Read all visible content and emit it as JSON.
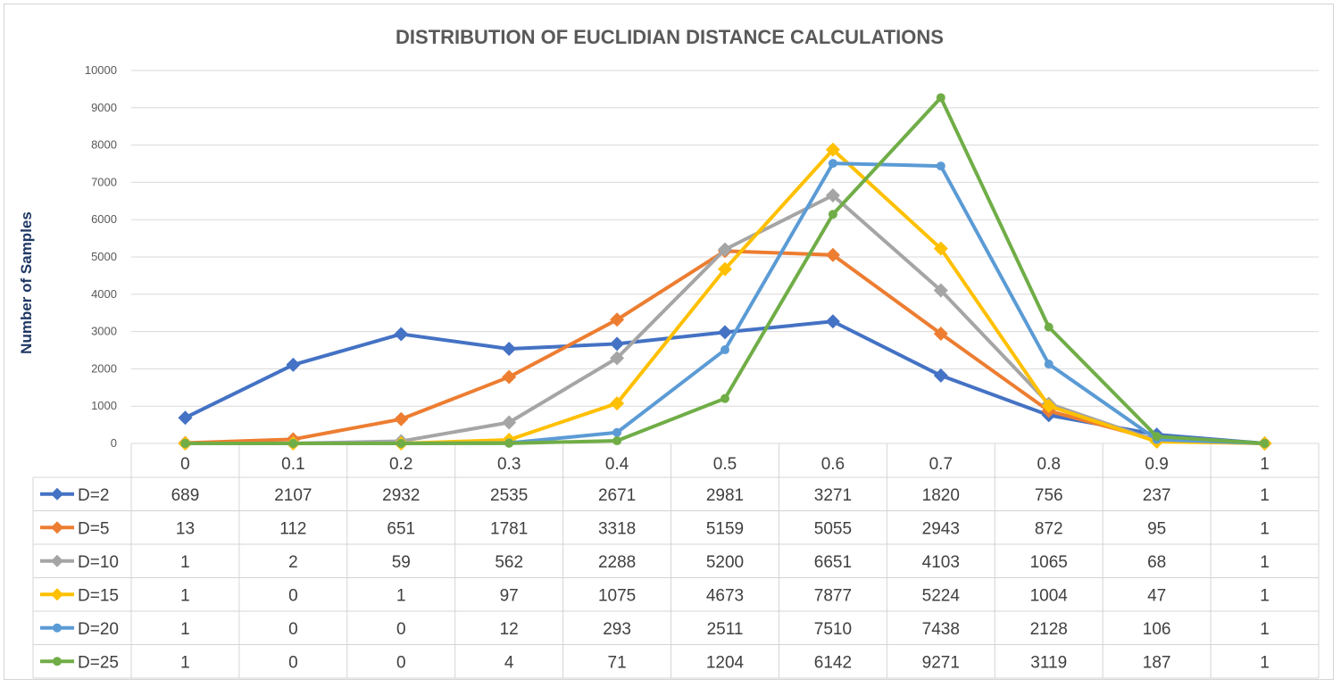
{
  "chart_data": {
    "type": "line",
    "title": "DISTRIBUTION OF EUCLIDIAN DISTANCE CALCULATIONS",
    "xlabel": "",
    "ylabel": "Number of Samples",
    "ylim": [
      0,
      10000
    ],
    "yticks": [
      0,
      1000,
      2000,
      3000,
      4000,
      5000,
      6000,
      7000,
      8000,
      9000,
      10000
    ],
    "categories": [
      "0",
      "0.1",
      "0.2",
      "0.3",
      "0.4",
      "0.5",
      "0.6",
      "0.7",
      "0.8",
      "0.9",
      "1"
    ],
    "grid": true,
    "legend": "data-table",
    "series": [
      {
        "name": "D=2",
        "color": "#4472c4",
        "marker": "diamond",
        "values": [
          689,
          2107,
          2932,
          2535,
          2671,
          2981,
          3271,
          1820,
          756,
          237,
          1
        ]
      },
      {
        "name": "D=5",
        "color": "#ed7d31",
        "marker": "diamond",
        "values": [
          13,
          112,
          651,
          1781,
          3318,
          5159,
          5055,
          2943,
          872,
          95,
          1
        ]
      },
      {
        "name": "D=10",
        "color": "#a5a5a5",
        "marker": "diamond",
        "values": [
          1,
          2,
          59,
          562,
          2288,
          5200,
          6651,
          4103,
          1065,
          68,
          1
        ]
      },
      {
        "name": "D=15",
        "color": "#ffc000",
        "marker": "diamond",
        "values": [
          1,
          0,
          1,
          97,
          1075,
          4673,
          7877,
          5224,
          1004,
          47,
          1
        ]
      },
      {
        "name": "D=20",
        "color": "#5b9bd5",
        "marker": "circle",
        "values": [
          1,
          0,
          0,
          12,
          293,
          2511,
          7510,
          7438,
          2128,
          106,
          1
        ]
      },
      {
        "name": "D=25",
        "color": "#70ad47",
        "marker": "circle",
        "values": [
          1,
          0,
          0,
          4,
          71,
          1204,
          6142,
          9271,
          3119,
          187,
          1
        ]
      }
    ]
  }
}
